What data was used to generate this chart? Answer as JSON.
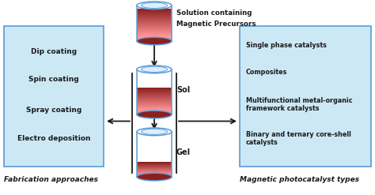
{
  "bg_color": "#ffffff",
  "box_left_color": "#cce8f4",
  "box_right_color": "#cce8f4",
  "box_border_color": "#5b9bd5",
  "cylinder_border_color": "#5b9bd5",
  "cylinder_fill_color": "#8b2020",
  "arrow_color": "#1a1a1a",
  "text_color": "#1a1a1a",
  "left_box_items": [
    "Dip coating",
    "Spin coating",
    "Spray coating",
    "Electro deposition"
  ],
  "left_box_label": "Fabrication approaches",
  "right_box_items": [
    "Single phase catalysts",
    "Composites",
    "Multifunctional metal-organic\nframework catalysts",
    "Binary and ternary core-shell\ncatalysts"
  ],
  "right_box_label": "Magnetic photocatalyst types",
  "top_label1": "Solution containing",
  "top_label2": "Magnetic Precursors",
  "sol_label": "Sol",
  "gel_label": "Gel",
  "figsize": [
    4.74,
    2.47
  ],
  "dpi": 100
}
